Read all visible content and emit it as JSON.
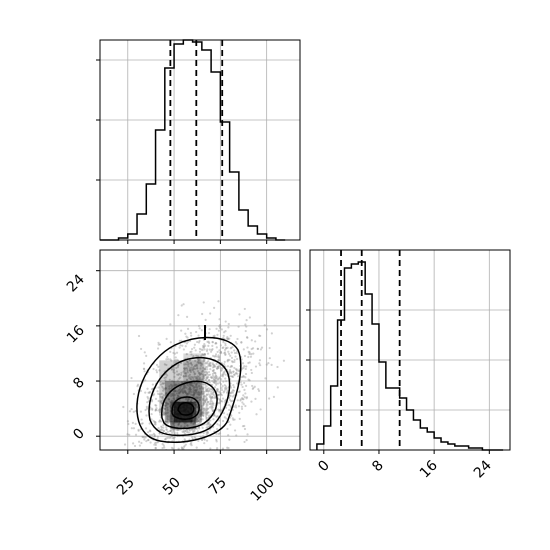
{
  "chart_data": {
    "type": "corner",
    "panels": [
      {
        "id": "hist-x",
        "type": "histogram",
        "xlim": [
          10,
          118
        ],
        "ylim": [
          0,
          1.0
        ],
        "bin_edges": [
          10,
          15,
          20,
          25,
          30,
          35,
          40,
          45,
          50,
          55,
          60,
          65,
          70,
          75,
          80,
          85,
          90,
          95,
          100,
          105,
          110
        ],
        "values": [
          0.0,
          0.0,
          0.01,
          0.03,
          0.13,
          0.28,
          0.55,
          0.86,
          0.98,
          1.0,
          0.99,
          0.95,
          0.84,
          0.59,
          0.34,
          0.15,
          0.07,
          0.03,
          0.01,
          0.0
        ],
        "quantile_lines": [
          48,
          62,
          76
        ],
        "y_ticks": [
          0.3,
          0.6,
          0.9
        ],
        "grid": true
      },
      {
        "id": "scatter-xy",
        "type": "scatter_density",
        "xlim": [
          10,
          118
        ],
        "ylim": [
          -2,
          27
        ],
        "xticks": [
          25,
          50,
          75,
          100
        ],
        "xtick_labels": [
          "25",
          "50",
          "75",
          "100"
        ],
        "yticks": [
          0,
          8,
          16,
          24
        ],
        "ytick_labels": [
          "0",
          "8",
          "16",
          "24"
        ],
        "density_center": [
          53,
          4
        ],
        "contour_levels": 4,
        "grid": true
      },
      {
        "id": "hist-y",
        "type": "histogram",
        "xlim": [
          -2,
          27
        ],
        "ylim": [
          0,
          1.0
        ],
        "bin_edges": [
          -1,
          0,
          1,
          2,
          3,
          4,
          5,
          6,
          7,
          8,
          9,
          10,
          11,
          12,
          13,
          14,
          15,
          16,
          17,
          18,
          19,
          20,
          21,
          22,
          23,
          24,
          25,
          26
        ],
        "values": [
          0.03,
          0.12,
          0.32,
          0.65,
          0.91,
          0.93,
          0.94,
          0.78,
          0.63,
          0.44,
          0.31,
          0.31,
          0.26,
          0.2,
          0.15,
          0.11,
          0.09,
          0.06,
          0.04,
          0.03,
          0.02,
          0.02,
          0.01,
          0.01,
          0.0,
          0.0,
          0.0
        ],
        "quantile_lines": [
          2.5,
          5.5,
          11
        ],
        "xticks": [
          0,
          8,
          16,
          24
        ],
        "xtick_labels": [
          "0",
          "8",
          "16",
          "24"
        ],
        "y_ticks": [
          0.2,
          0.45,
          0.7
        ],
        "grid": true
      }
    ]
  }
}
